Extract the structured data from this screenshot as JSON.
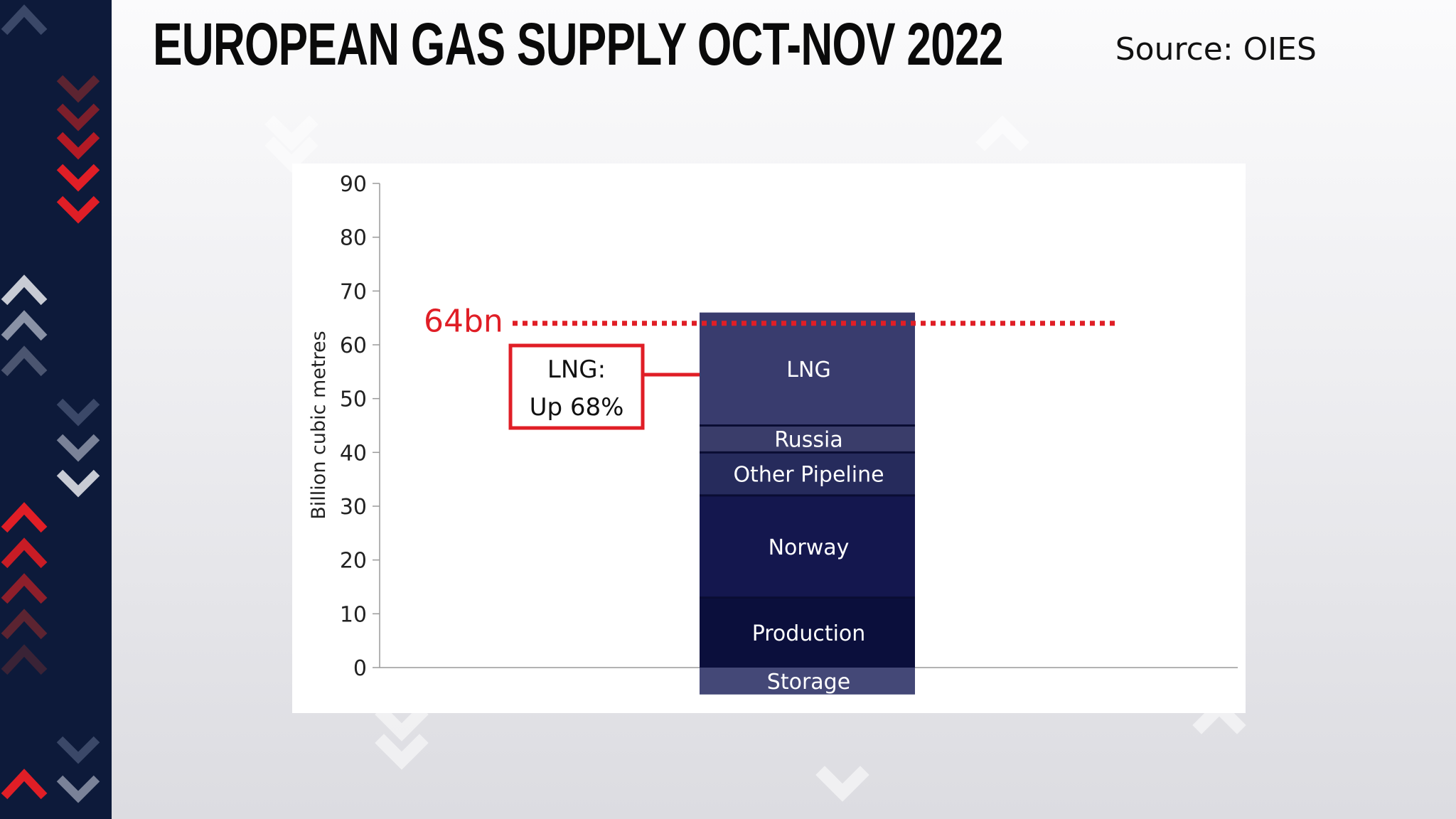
{
  "header": {
    "title": "EUROPEAN GAS SUPPLY OCT-NOV 2022",
    "source": "Source: OIES"
  },
  "colors": {
    "background_strip": "#0d1a3a",
    "accent_red": "#e01e26",
    "lng": "#393c6e",
    "russia": "#3a3d6a",
    "other_pipeline": "#262b5c",
    "norway": "#14174e",
    "production": "#0b0f3c",
    "storage": "#444877"
  },
  "chart_data": {
    "type": "bar",
    "stacked": true,
    "ylabel": "Billion cubic metres",
    "ylim": [
      0,
      90
    ],
    "yticks": [
      0,
      10,
      20,
      30,
      40,
      50,
      60,
      70,
      80,
      90
    ],
    "series": [
      {
        "name": "Storage",
        "value": -5,
        "color": "#444877"
      },
      {
        "name": "Production",
        "value": 13,
        "color": "#0b0f3c"
      },
      {
        "name": "Norway",
        "value": 19,
        "color": "#14174e"
      },
      {
        "name": "Other Pipeline",
        "value": 8,
        "color": "#262b5c"
      },
      {
        "name": "Russia",
        "value": 5,
        "color": "#3a3d6a"
      },
      {
        "name": "LNG",
        "value": 21,
        "color": "#393c6e"
      }
    ],
    "reference_line": {
      "value": 64,
      "label": "64bn"
    },
    "annotation": {
      "line1": "LNG:",
      "line2": "Up 68%"
    }
  }
}
